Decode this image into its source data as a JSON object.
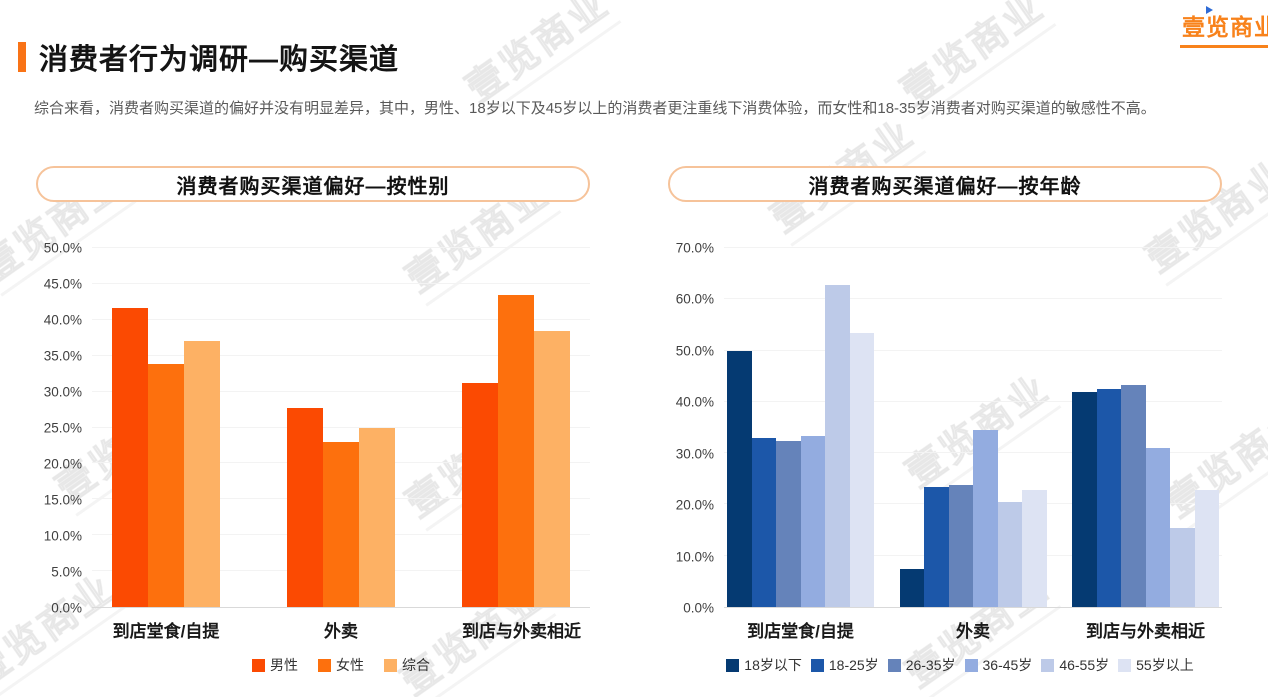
{
  "page": {
    "title": "消费者行为调研—购买渠道",
    "subtitle": "综合来看，消费者购买渠道的偏好并没有明显差异，其中，男性、18岁以下及45岁以上的消费者更注重线下消费体验，而女性和18-35岁消费者对购买渠道的敏感性不高。",
    "accent_color": "#F97316",
    "pill_border_color": "#F6C39A"
  },
  "logo": {
    "text": "壹览商业",
    "color": "#F8821B"
  },
  "chart_data": [
    {
      "type": "bar",
      "title": "消费者购买渠道偏好—按性别",
      "categories": [
        "到店堂食/自提",
        "外卖",
        "到店与外卖相近"
      ],
      "series": [
        {
          "name": "男性",
          "color": "#FB4A02",
          "values": [
            41.6,
            27.7,
            31.2
          ]
        },
        {
          "name": "女性",
          "color": "#FD700D",
          "values": [
            33.9,
            23.0,
            43.4
          ]
        },
        {
          "name": "综合",
          "color": "#FDB164",
          "values": [
            37.0,
            24.9,
            38.5
          ]
        }
      ],
      "xlabel": "",
      "ylabel": "",
      "ylim": [
        0,
        50
      ],
      "ytick_step": 5,
      "ytick_format": "percent_one_decimal",
      "grid": true,
      "legend_position": "bottom"
    },
    {
      "type": "bar",
      "title": "消费者购买渠道偏好—按年龄",
      "categories": [
        "到店堂食/自提",
        "外卖",
        "到店与外卖相近"
      ],
      "series": [
        {
          "name": "18岁以下",
          "color": "#053A72",
          "values": [
            50.0,
            7.4,
            41.9
          ]
        },
        {
          "name": "18-25岁",
          "color": "#1C57A9",
          "values": [
            33.0,
            23.4,
            42.5
          ]
        },
        {
          "name": "26-35岁",
          "color": "#6583BA",
          "values": [
            32.4,
            23.7,
            43.2
          ]
        },
        {
          "name": "36-45岁",
          "color": "#93ACE0",
          "values": [
            33.4,
            34.5,
            31.0
          ]
        },
        {
          "name": "46-55岁",
          "color": "#BDCAE8",
          "values": [
            62.8,
            20.5,
            15.4
          ]
        },
        {
          "name": "55岁以上",
          "color": "#DDE3F3",
          "values": [
            53.4,
            22.8,
            22.8
          ]
        }
      ],
      "xlabel": "",
      "ylabel": "",
      "ylim": [
        0,
        70
      ],
      "ytick_step": 10,
      "ytick_format": "percent_one_decimal",
      "grid": true,
      "legend_position": "bottom"
    }
  ]
}
